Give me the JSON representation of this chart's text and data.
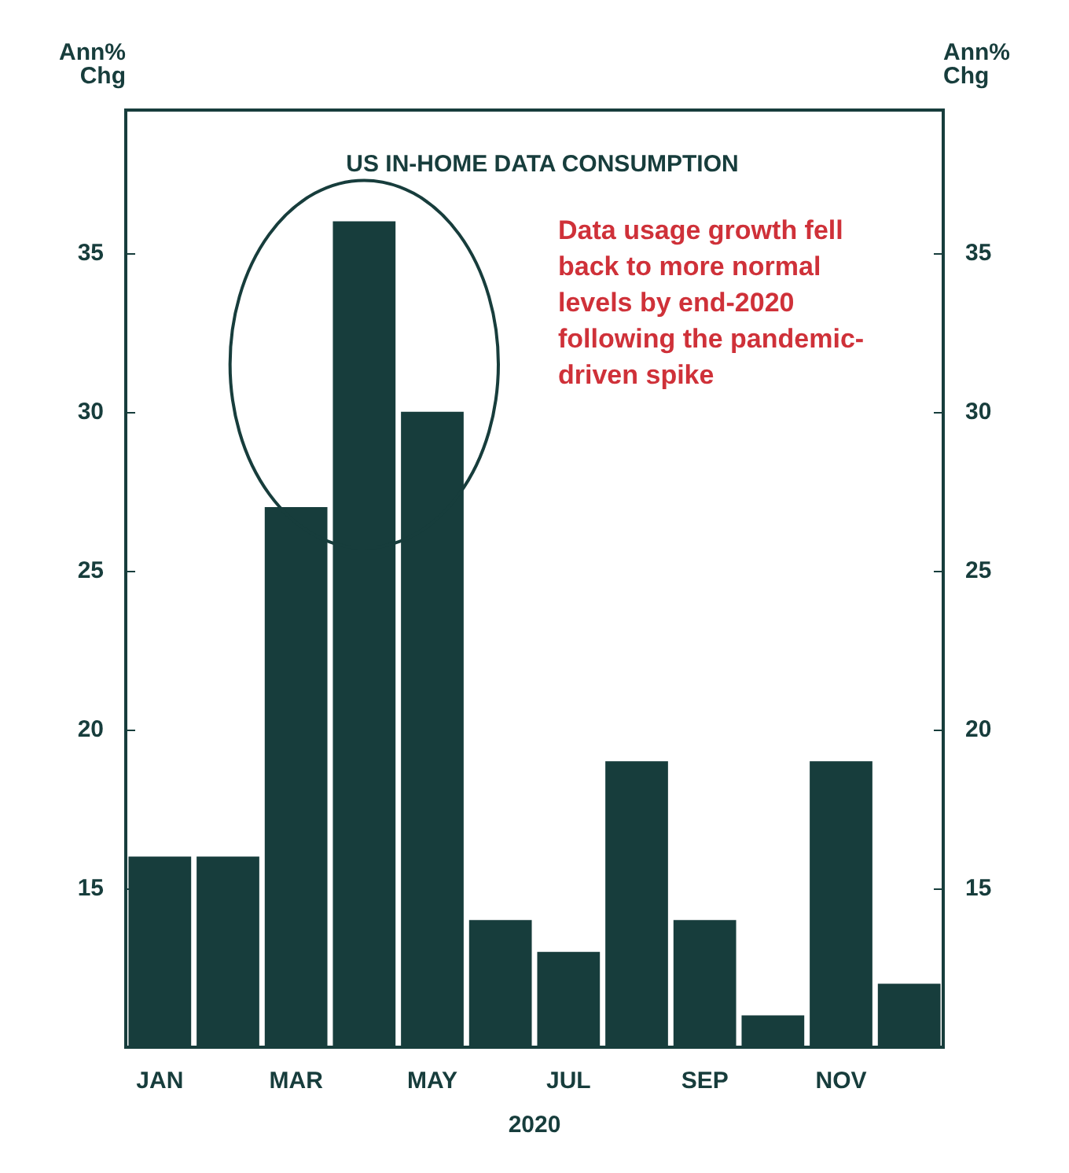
{
  "chart_data": {
    "type": "bar",
    "title": "US IN-HOME DATA CONSUMPTION",
    "categories": [
      "JAN",
      null,
      "MAR",
      null,
      "MAY",
      null,
      "JUL",
      null,
      "SEP",
      null,
      "NOV",
      null
    ],
    "values": [
      16,
      16,
      27,
      36,
      30,
      14,
      13,
      19,
      14,
      11,
      19,
      12
    ],
    "color": "#173d3c",
    "xlabel": "2020",
    "ylabel": "Ann%\nChg",
    "y2label": "Ann%\nChg",
    "ylim": [
      10,
      39.5
    ],
    "yticks": [
      15,
      20,
      25,
      30,
      35
    ],
    "y2lim": [
      10,
      39.5
    ],
    "y2ticks": [
      15,
      20,
      25,
      30,
      35
    ],
    "annotations": [
      "Data usage growth fell\nback to more normal\nlevels by end-2020\nfollowing the pandemic-\ndriven spike"
    ],
    "grid": false
  }
}
